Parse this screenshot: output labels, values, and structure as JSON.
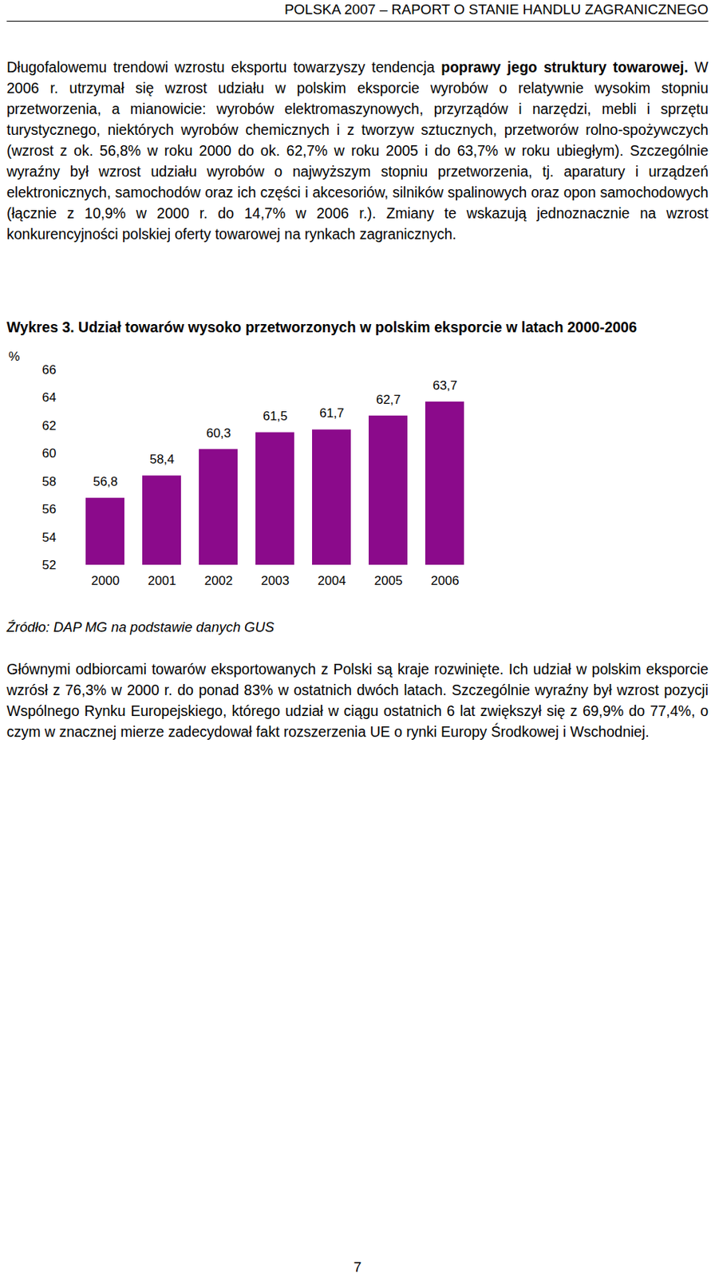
{
  "header": "POLSKA 2007 – RAPORT O STANIE HANDLU ZAGRANICZNEGO",
  "paragraphs_before": [
    [
      {
        "text": "Długofalowemu trendowi wzrostu eksportu towarzyszy tendencja ",
        "bold": false
      },
      {
        "text": "poprawy jego struktury towarowej.",
        "bold": true
      },
      {
        "text": " W 2006 r. utrzymał się wzrost udziału w polskim eksporcie wyrobów o relatywnie wysokim stopniu przetworzenia, a mianowicie: wyrobów elektromaszynowych, przyrządów i narzędzi, mebli i sprzętu turystycznego, niektórych wyrobów chemicznych i z tworzyw sztucznych, przetworów rolno-spożywczych (wzrost z ok. 56,8% w roku 2000 do ok. 62,7% w roku 2005 i do 63,7% w roku ubiegłym). Szczególnie wyraźny był wzrost udziału wyrobów o najwyższym stopniu przetworzenia, tj. aparatury i urządzeń elektronicznych, samochodów oraz ich części i akcesoriów, silników spalinowych oraz opon samochodowych (łącznie z 10,9% w 2000 r. do 14,7% w 2006 r.). Zmiany te wskazują jednoznacznie na wzrost konkurencyjności polskiej oferty towarowej na rynkach zagranicznych.",
        "bold": false
      }
    ]
  ],
  "chart_data": {
    "type": "bar",
    "title": "Wykres 3. Udział towarów wysoko przetworzonych w polskim eksporcie w latach 2000-2006",
    "y_label": "%",
    "categories": [
      "2000",
      "2001",
      "2002",
      "2003",
      "2004",
      "2005",
      "2006"
    ],
    "values": [
      56.8,
      58.4,
      60.3,
      61.5,
      61.7,
      62.7,
      63.7
    ],
    "value_labels": [
      "56,8",
      "58,4",
      "60,3",
      "61,5",
      "61,7",
      "62,7",
      "63,7"
    ],
    "color": "#8b0a8b",
    "ylim": [
      52,
      66
    ],
    "yticks": [
      52,
      54,
      56,
      58,
      60,
      62,
      64,
      66
    ],
    "grid": false,
    "data_labels": true
  },
  "source": "Źródło: DAP MG na podstawie danych GUS",
  "paragraphs_after": [
    [
      {
        "text": "Głównymi odbiorcami towarów eksportowanych z Polski są kraje rozwinięte. Ich udział w polskim eksporcie wzrósł z 76,3% w 2000 r. do ponad 83% w ostatnich dwóch latach. Szczególnie wyraźny był wzrost pozycji Wspólnego Rynku Europejskiego, którego udział w ciągu ostatnich 6 lat zwiększył się z 69,9% do 77,4%, o czym w znacznej mierze zadecydował fakt rozszerzenia UE o rynki Europy Środkowej i Wschodniej.",
        "bold": false
      }
    ]
  ],
  "page_number": "7"
}
